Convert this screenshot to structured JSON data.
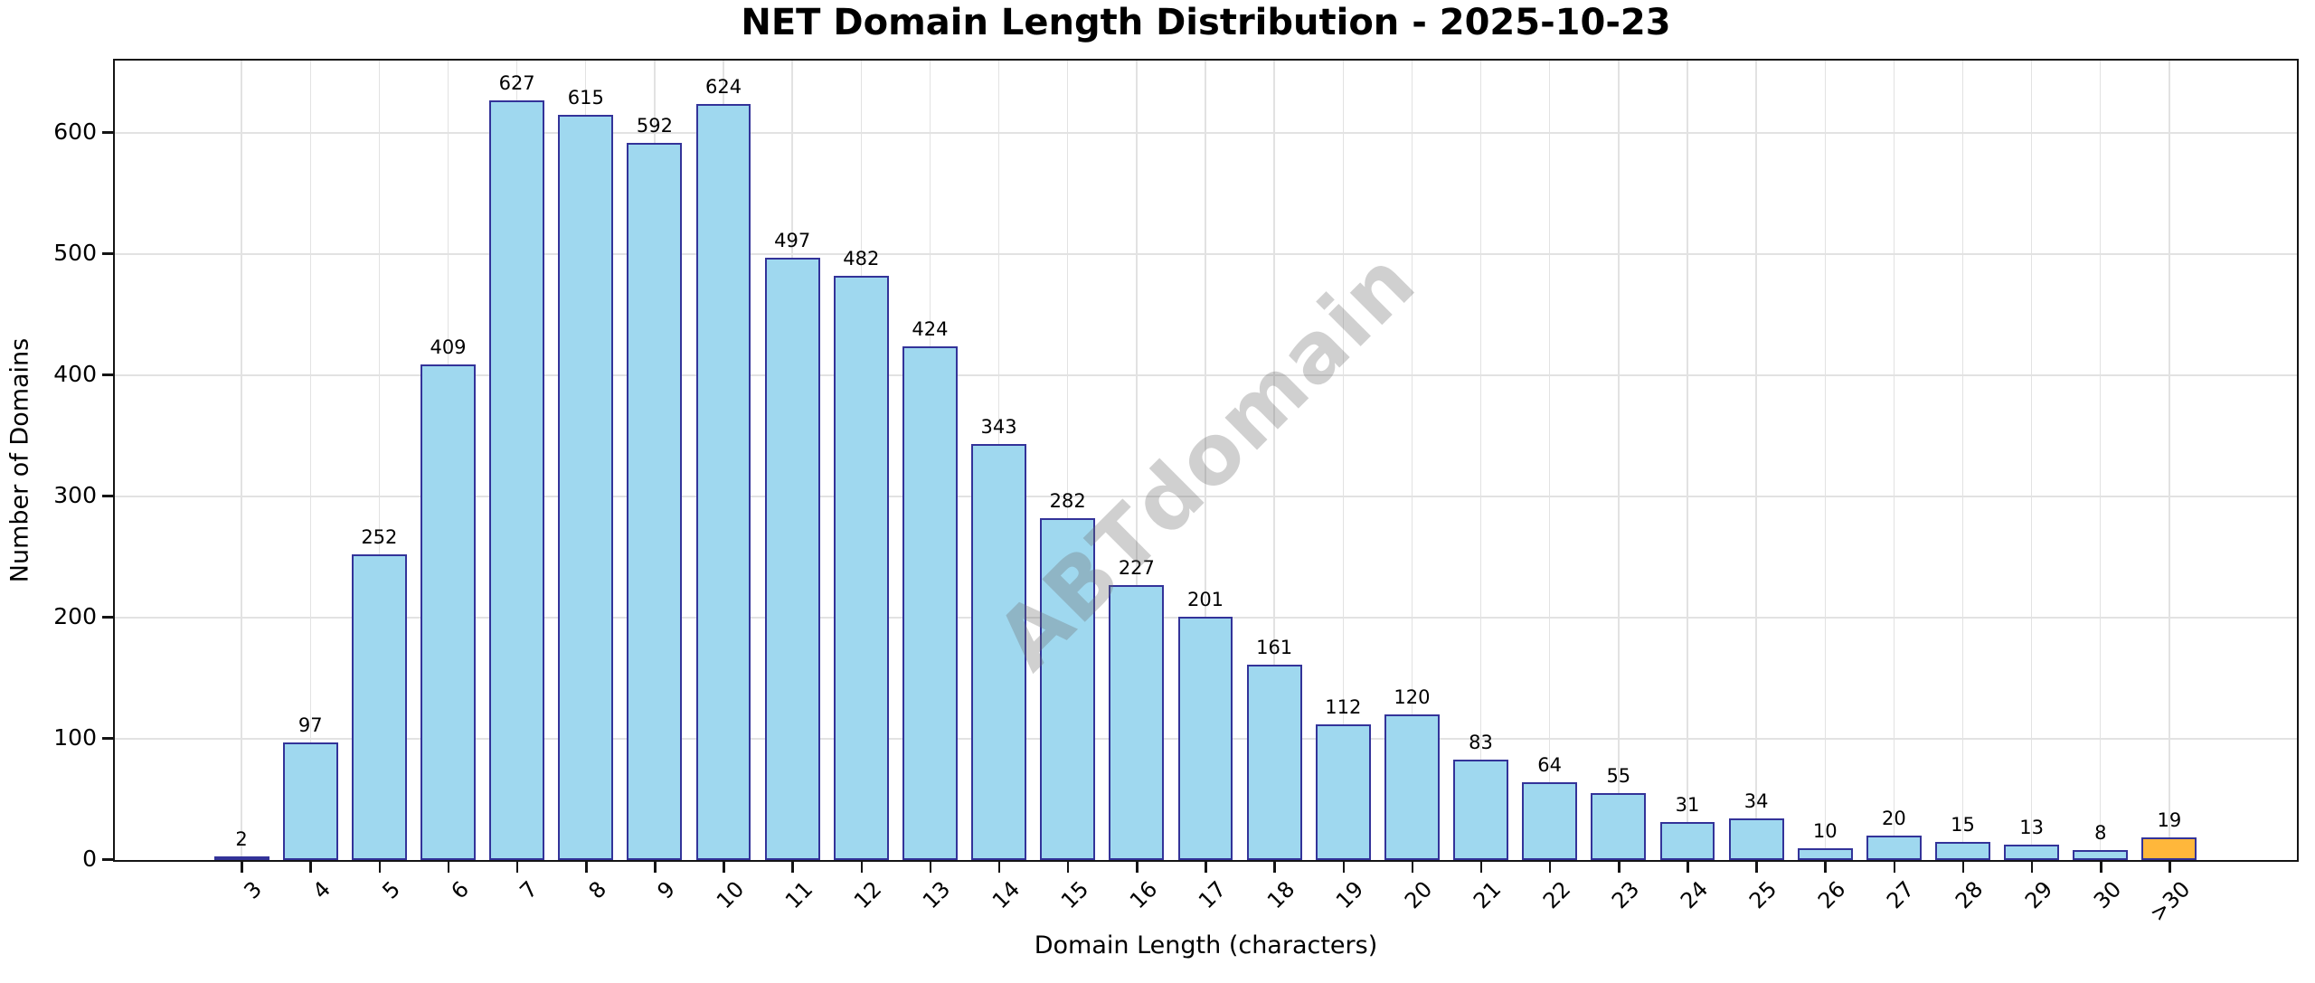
{
  "chart_data": {
    "type": "bar",
    "title": "NET Domain Length Distribution - 2025-10-23",
    "xlabel": "Domain Length (characters)",
    "ylabel": "Number of Domains",
    "categories": [
      "3",
      "4",
      "5",
      "6",
      "7",
      "8",
      "9",
      "10",
      "11",
      "12",
      "13",
      "14",
      "15",
      "16",
      "17",
      "18",
      "19",
      "20",
      "21",
      "22",
      "23",
      "24",
      "25",
      "26",
      "27",
      "28",
      "29",
      "30",
      ">30"
    ],
    "values": [
      2,
      97,
      252,
      409,
      627,
      615,
      592,
      624,
      497,
      482,
      424,
      343,
      282,
      227,
      201,
      161,
      112,
      120,
      83,
      64,
      55,
      31,
      34,
      10,
      20,
      15,
      13,
      8,
      19
    ],
    "bar_fill_color": "#9FD8EF",
    "bar_edge_color": "#333399",
    "last_bar_fill_color": "#FFB73B",
    "watermark": "ABTdomain",
    "yticks": [
      0,
      100,
      200,
      300,
      400,
      500,
      600
    ],
    "ylim": [
      0,
      659
    ],
    "grid": true,
    "legend_position": "none"
  }
}
